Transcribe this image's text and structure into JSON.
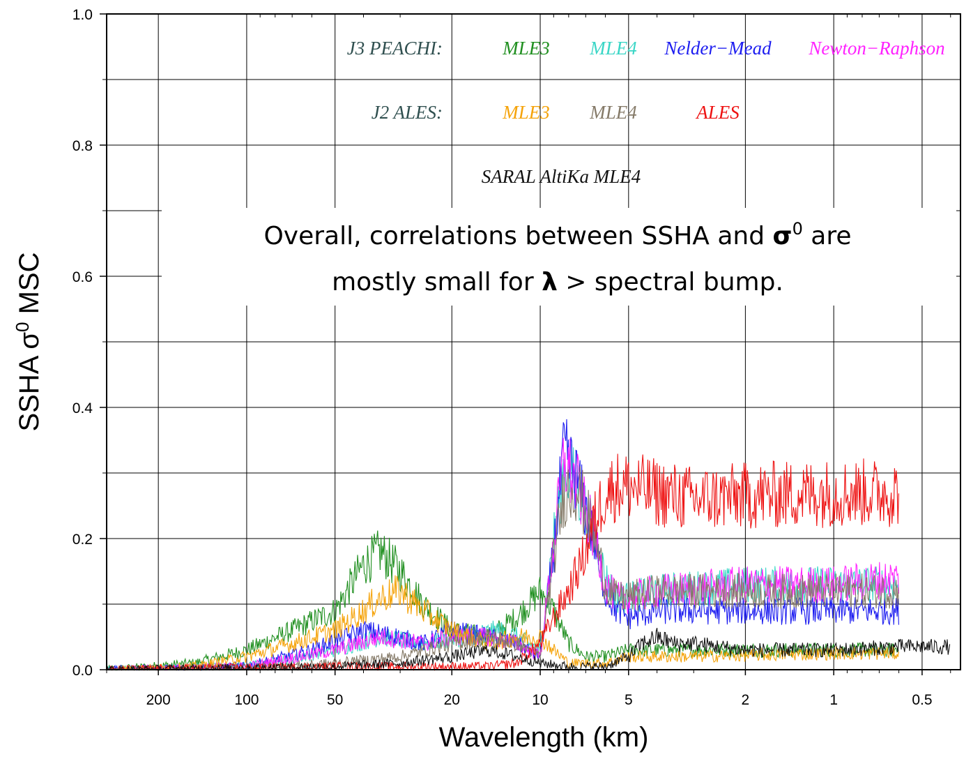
{
  "chart_data": {
    "type": "line",
    "xlabel": "Wavelength (km)",
    "ylabel_main": "SSHA σ",
    "ylabel_sup": "0",
    "ylabel_tail": " MSC",
    "x_scale": "log-reversed",
    "xlim": [
      300,
      0.37
    ],
    "ylim": [
      0,
      1.0
    ],
    "grid": true,
    "x_ticks": [
      {
        "value": 200,
        "label": "200"
      },
      {
        "value": 100,
        "label": "100"
      },
      {
        "value": 50,
        "label": "50"
      },
      {
        "value": 20,
        "label": "20"
      },
      {
        "value": 10,
        "label": "10"
      },
      {
        "value": 5,
        "label": "5"
      },
      {
        "value": 2,
        "label": "2"
      },
      {
        "value": 1,
        "label": "1"
      },
      {
        "value": 0.5,
        "label": "0.5"
      }
    ],
    "y_ticks": [
      {
        "value": 0.0,
        "label": "0.0"
      },
      {
        "value": 0.2,
        "label": "0.2"
      },
      {
        "value": 0.4,
        "label": "0.4"
      },
      {
        "value": 0.6,
        "label": "0.6"
      },
      {
        "value": 0.8,
        "label": "0.8"
      },
      {
        "value": 1.0,
        "label": "1.0"
      }
    ],
    "legend": [
      {
        "group": "J3 PEACHI:",
        "items": [
          {
            "name": "MLE3",
            "color": "#1f8f1f"
          },
          {
            "name": "MLE4",
            "color": "#3ad6c6"
          },
          {
            "name": "Nelder−Mead",
            "color": "#1c1cf0"
          },
          {
            "name": "Newton−Raphson",
            "color": "#ff22ff"
          }
        ]
      },
      {
        "group": "J2 ALES:",
        "items": [
          {
            "name": "MLE3",
            "color": "#f5a30a"
          },
          {
            "name": "MLE4",
            "color": "#857a68"
          },
          {
            "name": "ALES",
            "color": "#ee1111"
          }
        ]
      },
      {
        "group": "",
        "items": [
          {
            "name": "SARAL AltiKa MLE4",
            "color": "#111111"
          }
        ]
      }
    ],
    "series": [
      {
        "name": "J3 PEACHI MLE3",
        "color": "#1f8f1f",
        "x": [
          300,
          150,
          100,
          70,
          50,
          40,
          35,
          30,
          25,
          20,
          15,
          12,
          10,
          9,
          8,
          7,
          6,
          5,
          3,
          1,
          0.6
        ],
        "y": [
          0.0,
          0.01,
          0.03,
          0.06,
          0.09,
          0.16,
          0.18,
          0.15,
          0.1,
          0.06,
          0.05,
          0.08,
          0.12,
          0.09,
          0.04,
          0.02,
          0.02,
          0.03,
          0.03,
          0.03,
          0.03
        ]
      },
      {
        "name": "J3 PEACHI MLE4",
        "color": "#3ad6c6",
        "x": [
          300,
          100,
          50,
          35,
          25,
          18,
          14,
          12,
          10,
          9,
          8.3,
          7.5,
          6.5,
          6,
          5.5,
          5,
          4,
          2,
          1,
          0.6
        ],
        "y": [
          0.0,
          0.005,
          0.03,
          0.05,
          0.04,
          0.05,
          0.06,
          0.05,
          0.03,
          0.2,
          0.31,
          0.28,
          0.2,
          0.14,
          0.11,
          0.11,
          0.12,
          0.13,
          0.13,
          0.13
        ]
      },
      {
        "name": "J3 PEACHI Nelder-Mead",
        "color": "#1c1cf0",
        "x": [
          300,
          100,
          60,
          40,
          30,
          25,
          20,
          15,
          12,
          10,
          9,
          8.3,
          7.5,
          6.5,
          6,
          5.5,
          5,
          4,
          2,
          1,
          0.6
        ],
        "y": [
          0.0,
          0.005,
          0.03,
          0.06,
          0.05,
          0.04,
          0.06,
          0.05,
          0.04,
          0.02,
          0.18,
          0.33,
          0.29,
          0.19,
          0.12,
          0.09,
          0.08,
          0.09,
          0.09,
          0.09,
          0.09
        ]
      },
      {
        "name": "J3 PEACHI Newton-Raphson",
        "color": "#ff22ff",
        "x": [
          300,
          100,
          50,
          35,
          25,
          20,
          15,
          12,
          10,
          9,
          8.3,
          7.5,
          6.5,
          6,
          5.5,
          5,
          4,
          2,
          1,
          0.6
        ],
        "y": [
          0.0,
          0.005,
          0.03,
          0.05,
          0.04,
          0.05,
          0.05,
          0.04,
          0.02,
          0.19,
          0.32,
          0.28,
          0.2,
          0.13,
          0.11,
          0.11,
          0.12,
          0.13,
          0.13,
          0.14
        ]
      },
      {
        "name": "J2 ALES MLE3",
        "color": "#f5a30a",
        "x": [
          300,
          150,
          100,
          70,
          50,
          40,
          35,
          30,
          25,
          20,
          15,
          12,
          10,
          9,
          8,
          7,
          6,
          5,
          3,
          1,
          0.6
        ],
        "y": [
          0.0,
          0.005,
          0.02,
          0.04,
          0.06,
          0.09,
          0.11,
          0.12,
          0.09,
          0.06,
          0.04,
          0.05,
          0.05,
          0.03,
          0.01,
          0.01,
          0.01,
          0.02,
          0.02,
          0.025,
          0.025
        ]
      },
      {
        "name": "J2 ALES MLE4",
        "color": "#857a68",
        "x": [
          300,
          100,
          50,
          30,
          20,
          15,
          12,
          10,
          9,
          8.3,
          7.5,
          6.5,
          6,
          5.5,
          5,
          4,
          2,
          1,
          0.6
        ],
        "y": [
          0.0,
          0.003,
          0.01,
          0.02,
          0.04,
          0.05,
          0.04,
          0.02,
          0.17,
          0.27,
          0.28,
          0.2,
          0.13,
          0.11,
          0.11,
          0.12,
          0.12,
          0.12,
          0.12
        ]
      },
      {
        "name": "J2 ALES ALES",
        "color": "#ee1111",
        "x": [
          300,
          100,
          50,
          30,
          20,
          15,
          12,
          10,
          9,
          8,
          7,
          6.5,
          6,
          5.5,
          5,
          4,
          3,
          2,
          1,
          0.6
        ],
        "y": [
          0.0,
          0.003,
          0.005,
          0.005,
          0.005,
          0.005,
          0.01,
          0.04,
          0.08,
          0.12,
          0.18,
          0.23,
          0.27,
          0.28,
          0.28,
          0.27,
          0.26,
          0.265,
          0.27,
          0.27
        ]
      },
      {
        "name": "SARAL AltiKa MLE4",
        "color": "#111111",
        "x": [
          300,
          100,
          50,
          30,
          20,
          15,
          12,
          10,
          8,
          6,
          5,
          4.5,
          4,
          3.5,
          3,
          2,
          1,
          0.6,
          0.5,
          0.4
        ],
        "y": [
          0.0,
          0.003,
          0.005,
          0.01,
          0.02,
          0.03,
          0.02,
          0.01,
          0.005,
          0.005,
          0.02,
          0.04,
          0.05,
          0.04,
          0.04,
          0.03,
          0.03,
          0.035,
          0.035,
          0.035
        ]
      }
    ]
  },
  "annotation": {
    "line1_a": "Overall, correlations between SSHA and ",
    "line1_sigma": "σ",
    "line1_sup": "0",
    "line1_b": " are",
    "line2_a": "mostly small for ",
    "line2_lambda": "λ",
    "line2_b": " > spectral bump."
  }
}
